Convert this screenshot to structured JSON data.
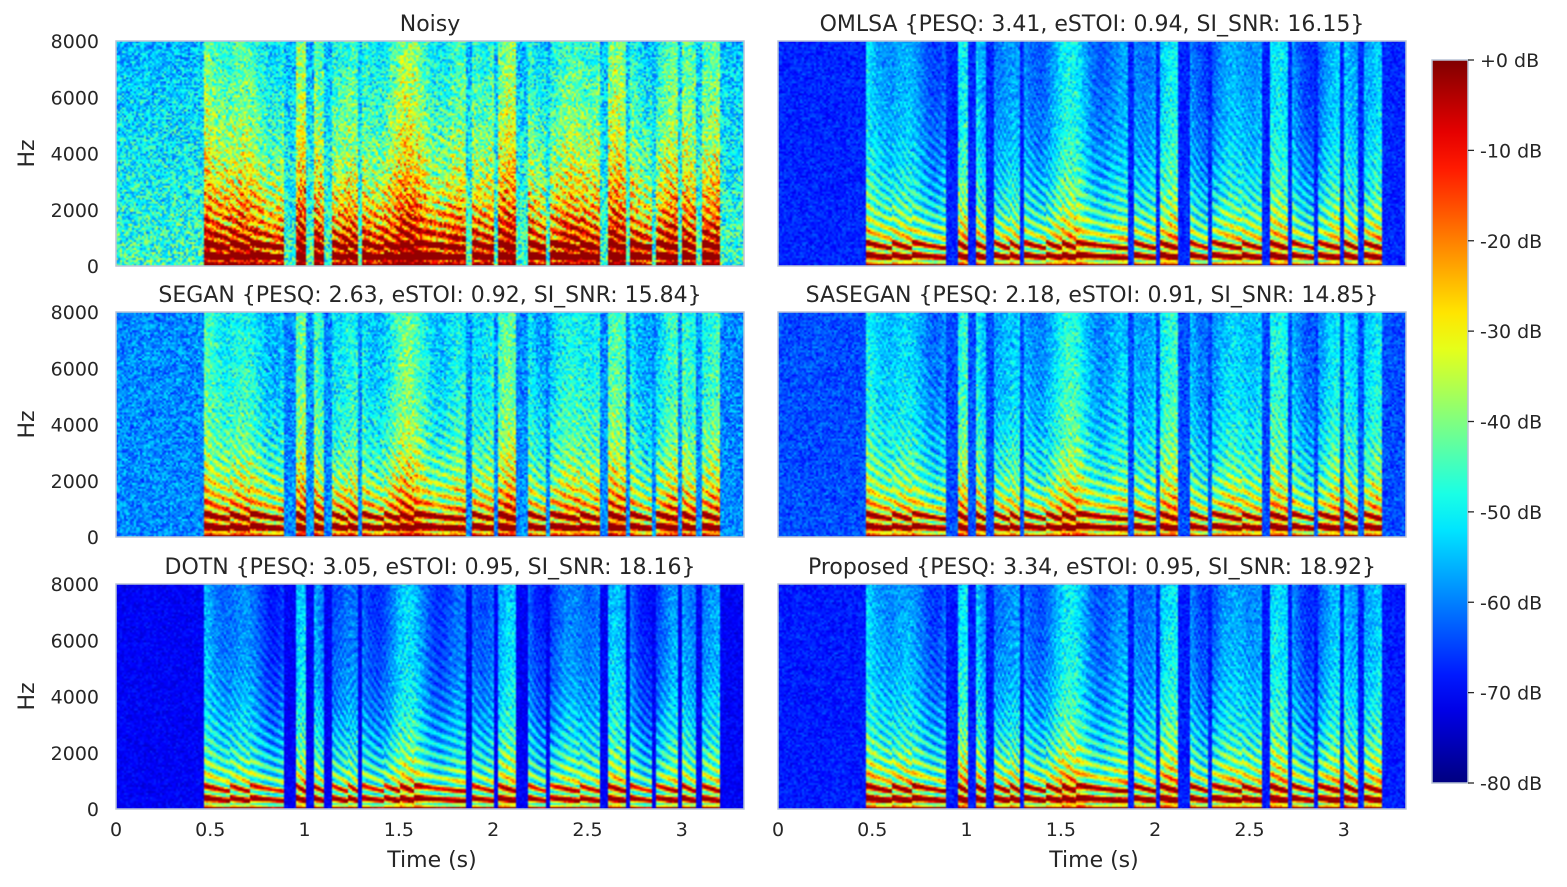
{
  "chart_data": {
    "type": "heatmap",
    "panels": [
      {
        "title": "Noisy",
        "ylabel": "Hz",
        "xlabel": "",
        "noise_floor": 0.32,
        "formant_strength": 1.0
      },
      {
        "title": "OMLSA  {PESQ: 3.41, eSTOI: 0.94, SI_SNR: 16.15}",
        "ylabel": "",
        "xlabel": "",
        "noise_floor": 0.08,
        "formant_strength": 0.9
      },
      {
        "title": "SEGAN  {PESQ: 2.63, eSTOI: 0.92, SI_SNR: 15.84}",
        "ylabel": "Hz",
        "xlabel": "",
        "noise_floor": 0.18,
        "formant_strength": 0.95
      },
      {
        "title": "SASEGAN  {PESQ: 2.18, eSTOI: 0.91, SI_SNR: 14.85}",
        "ylabel": "",
        "xlabel": "",
        "noise_floor": 0.12,
        "formant_strength": 0.9
      },
      {
        "title": "DOTN  {PESQ: 3.05, eSTOI: 0.95, SI_SNR: 18.16}",
        "ylabel": "Hz",
        "xlabel": "Time (s)",
        "noise_floor": 0.04,
        "formant_strength": 0.85
      },
      {
        "title": "Proposed  {PESQ: 3.34, eSTOI: 0.95, SI_SNR: 18.92}",
        "ylabel": "",
        "xlabel": "Time (s)",
        "noise_floor": 0.07,
        "formant_strength": 0.95
      }
    ],
    "x_ticks": [
      "0",
      "0.5",
      "1",
      "1.5",
      "2",
      "2.5",
      "3"
    ],
    "x_tick_values": [
      0,
      0.5,
      1,
      1.5,
      2,
      2.5,
      3
    ],
    "xlim": [
      0,
      3.33
    ],
    "y_ticks": [
      "0",
      "2000",
      "4000",
      "6000",
      "8000"
    ],
    "y_tick_values": [
      0,
      2000,
      4000,
      6000,
      8000
    ],
    "ylim": [
      0,
      8000
    ],
    "colorbar": {
      "ticks": [
        "+0 dB",
        "-10 dB",
        "-20 dB",
        "-30 dB",
        "-40 dB",
        "-50 dB",
        "-60 dB",
        "-70 dB",
        "-80 dB"
      ],
      "tick_values": [
        0,
        -10,
        -20,
        -30,
        -40,
        -50,
        -60,
        -70,
        -80
      ],
      "range": [
        -80,
        0
      ],
      "colormap": "jet"
    },
    "speech_segments_s": [
      [
        0.46,
        0.6
      ],
      [
        0.6,
        0.7
      ],
      [
        0.71,
        0.89
      ],
      [
        0.95,
        1.0
      ],
      [
        1.04,
        1.1
      ],
      [
        1.14,
        1.22
      ],
      [
        1.23,
        1.28
      ],
      [
        1.3,
        1.42
      ],
      [
        1.42,
        1.5
      ],
      [
        1.5,
        1.58
      ],
      [
        1.58,
        1.85
      ],
      [
        1.88,
        2.0
      ],
      [
        2.02,
        2.12
      ],
      [
        2.18,
        2.28
      ],
      [
        2.3,
        2.45
      ],
      [
        2.45,
        2.56
      ],
      [
        2.6,
        2.7
      ],
      [
        2.72,
        2.84
      ],
      [
        2.86,
        2.98
      ],
      [
        3.0,
        3.07
      ],
      [
        3.1,
        3.2
      ]
    ]
  }
}
